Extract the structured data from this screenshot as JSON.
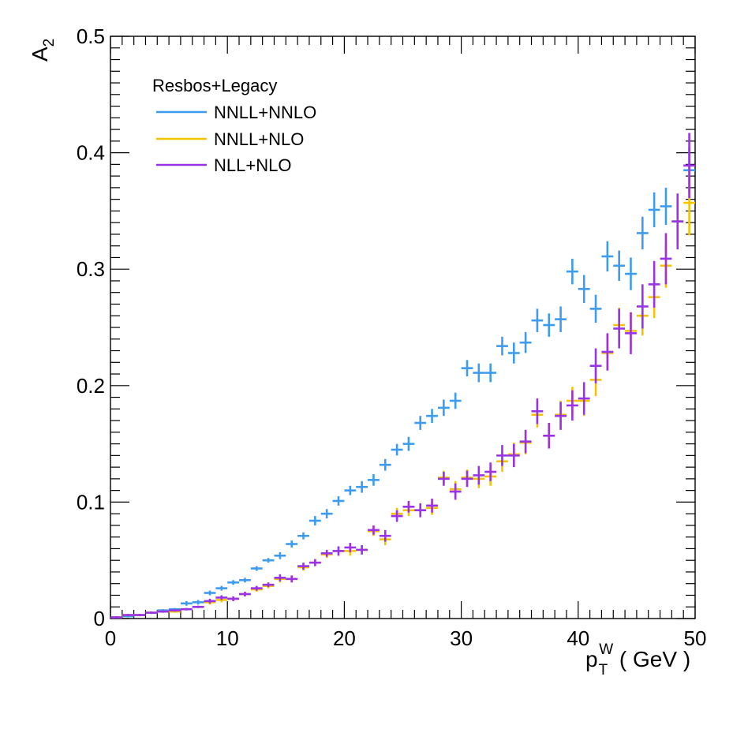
{
  "chart_data": {
    "type": "scatter",
    "ylabel": "A",
    "ylabel_sub": "2",
    "xlabel_p": "p",
    "xlabel_sub": "T",
    "xlabel_sup": "W",
    "xlabel_unit": " ( GeV )",
    "xlim": [
      0,
      50
    ],
    "ylim": [
      0,
      0.5
    ],
    "x_ticks": [
      "0",
      "10",
      "20",
      "30",
      "40",
      "50"
    ],
    "y_ticks": [
      "0",
      "0.1",
      "0.2",
      "0.3",
      "0.4",
      "0.5"
    ],
    "legend_title": "Resbos+Legacy",
    "series": [
      {
        "name": "NNLL+NNLO",
        "color": "#3d9bf0",
        "x": [
          0.5,
          1.5,
          2.5,
          3.5,
          4.5,
          5.5,
          6.5,
          7.5,
          8.5,
          9.5,
          10.5,
          11.5,
          12.5,
          13.5,
          14.5,
          15.5,
          16.5,
          17.5,
          18.5,
          19.5,
          20.5,
          21.5,
          22.5,
          23.5,
          24.5,
          25.5,
          26.5,
          27.5,
          28.5,
          29.5,
          30.5,
          31.5,
          32.5,
          33.5,
          34.5,
          35.5,
          36.5,
          37.5,
          38.5,
          39.5,
          40.5,
          41.5,
          42.5,
          43.5,
          44.5,
          45.5,
          46.5,
          47.5,
          48.5,
          49.5
        ],
        "y": [
          0.001,
          0.002,
          0.003,
          0.005,
          0.007,
          0.008,
          0.013,
          0.014,
          0.022,
          0.026,
          0.031,
          0.033,
          0.043,
          0.05,
          0.054,
          0.064,
          0.071,
          0.084,
          0.09,
          0.101,
          0.11,
          0.113,
          0.119,
          0.132,
          0.145,
          0.15,
          0.168,
          0.174,
          0.181,
          0.187,
          0.215,
          0.211,
          0.211,
          0.234,
          0.228,
          0.237,
          0.256,
          0.252,
          0.257,
          0.298,
          0.283,
          0.266,
          0.311,
          0.303,
          0.296,
          0.331,
          0.351,
          0.354,
          0.341,
          0.385
        ],
        "err": [
          0.001,
          0.001,
          0.001,
          0.001,
          0.001,
          0.001,
          0.002,
          0.002,
          0.002,
          0.002,
          0.002,
          0.002,
          0.002,
          0.002,
          0.003,
          0.003,
          0.003,
          0.004,
          0.004,
          0.004,
          0.004,
          0.005,
          0.005,
          0.005,
          0.005,
          0.006,
          0.006,
          0.006,
          0.007,
          0.007,
          0.007,
          0.008,
          0.008,
          0.008,
          0.009,
          0.009,
          0.01,
          0.01,
          0.011,
          0.011,
          0.012,
          0.012,
          0.013,
          0.013,
          0.014,
          0.014,
          0.015,
          0.016,
          0.017,
          0.02
        ]
      },
      {
        "name": "NNLL+NLO",
        "color": "#f5c400",
        "x": [
          0.5,
          1.5,
          2.5,
          3.5,
          4.5,
          5.5,
          6.5,
          7.5,
          8.5,
          9.5,
          10.5,
          11.5,
          12.5,
          13.5,
          14.5,
          15.5,
          16.5,
          17.5,
          18.5,
          19.5,
          20.5,
          21.5,
          22.5,
          23.5,
          24.5,
          25.5,
          26.5,
          27.5,
          28.5,
          29.5,
          30.5,
          31.5,
          32.5,
          33.5,
          34.5,
          35.5,
          36.5,
          37.5,
          38.5,
          39.5,
          40.5,
          41.5,
          42.5,
          43.5,
          44.5,
          45.5,
          46.5,
          47.5,
          48.5,
          49.5
        ],
        "y": [
          0.001,
          0.003,
          0.003,
          0.005,
          0.006,
          0.006,
          0.008,
          0.01,
          0.014,
          0.016,
          0.017,
          0.021,
          0.025,
          0.028,
          0.034,
          0.034,
          0.044,
          0.048,
          0.055,
          0.058,
          0.058,
          0.059,
          0.075,
          0.068,
          0.09,
          0.093,
          0.093,
          0.095,
          0.121,
          0.111,
          0.121,
          0.12,
          0.122,
          0.135,
          0.141,
          0.151,
          0.175,
          0.157,
          0.175,
          0.187,
          0.187,
          0.205,
          0.228,
          0.252,
          0.247,
          0.26,
          0.276,
          0.303,
          0.341,
          0.357
        ],
        "err": [
          0.001,
          0.001,
          0.001,
          0.001,
          0.001,
          0.001,
          0.001,
          0.001,
          0.002,
          0.002,
          0.002,
          0.002,
          0.002,
          0.002,
          0.003,
          0.003,
          0.003,
          0.003,
          0.003,
          0.004,
          0.004,
          0.004,
          0.004,
          0.005,
          0.005,
          0.005,
          0.006,
          0.006,
          0.006,
          0.007,
          0.007,
          0.008,
          0.008,
          0.009,
          0.01,
          0.01,
          0.011,
          0.011,
          0.012,
          0.012,
          0.013,
          0.014,
          0.015,
          0.015,
          0.016,
          0.017,
          0.018,
          0.019,
          0.02,
          0.028
        ]
      },
      {
        "name": "NLL+NLO",
        "color": "#9a33e8",
        "x": [
          0.5,
          1.5,
          2.5,
          3.5,
          4.5,
          5.5,
          6.5,
          7.5,
          8.5,
          9.5,
          10.5,
          11.5,
          12.5,
          13.5,
          14.5,
          15.5,
          16.5,
          17.5,
          18.5,
          19.5,
          20.5,
          21.5,
          22.5,
          23.5,
          24.5,
          25.5,
          26.5,
          27.5,
          28.5,
          29.5,
          30.5,
          31.5,
          32.5,
          33.5,
          34.5,
          35.5,
          36.5,
          37.5,
          38.5,
          39.5,
          40.5,
          41.5,
          42.5,
          43.5,
          44.5,
          45.5,
          46.5,
          47.5,
          48.5,
          49.5
        ],
        "y": [
          0.001,
          0.003,
          0.003,
          0.005,
          0.006,
          0.007,
          0.008,
          0.01,
          0.015,
          0.018,
          0.017,
          0.021,
          0.026,
          0.029,
          0.035,
          0.034,
          0.045,
          0.048,
          0.056,
          0.058,
          0.061,
          0.059,
          0.076,
          0.071,
          0.088,
          0.096,
          0.093,
          0.097,
          0.12,
          0.109,
          0.12,
          0.123,
          0.126,
          0.14,
          0.14,
          0.152,
          0.178,
          0.157,
          0.174,
          0.183,
          0.189,
          0.217,
          0.229,
          0.249,
          0.245,
          0.268,
          0.287,
          0.309,
          0.341,
          0.389
        ],
        "err": [
          0.001,
          0.001,
          0.001,
          0.001,
          0.001,
          0.001,
          0.001,
          0.001,
          0.002,
          0.002,
          0.002,
          0.002,
          0.002,
          0.002,
          0.003,
          0.003,
          0.003,
          0.003,
          0.003,
          0.004,
          0.004,
          0.004,
          0.004,
          0.005,
          0.005,
          0.005,
          0.006,
          0.006,
          0.006,
          0.007,
          0.007,
          0.008,
          0.008,
          0.009,
          0.01,
          0.01,
          0.011,
          0.011,
          0.012,
          0.013,
          0.014,
          0.015,
          0.016,
          0.017,
          0.018,
          0.019,
          0.02,
          0.022,
          0.024,
          0.028
        ]
      }
    ]
  }
}
